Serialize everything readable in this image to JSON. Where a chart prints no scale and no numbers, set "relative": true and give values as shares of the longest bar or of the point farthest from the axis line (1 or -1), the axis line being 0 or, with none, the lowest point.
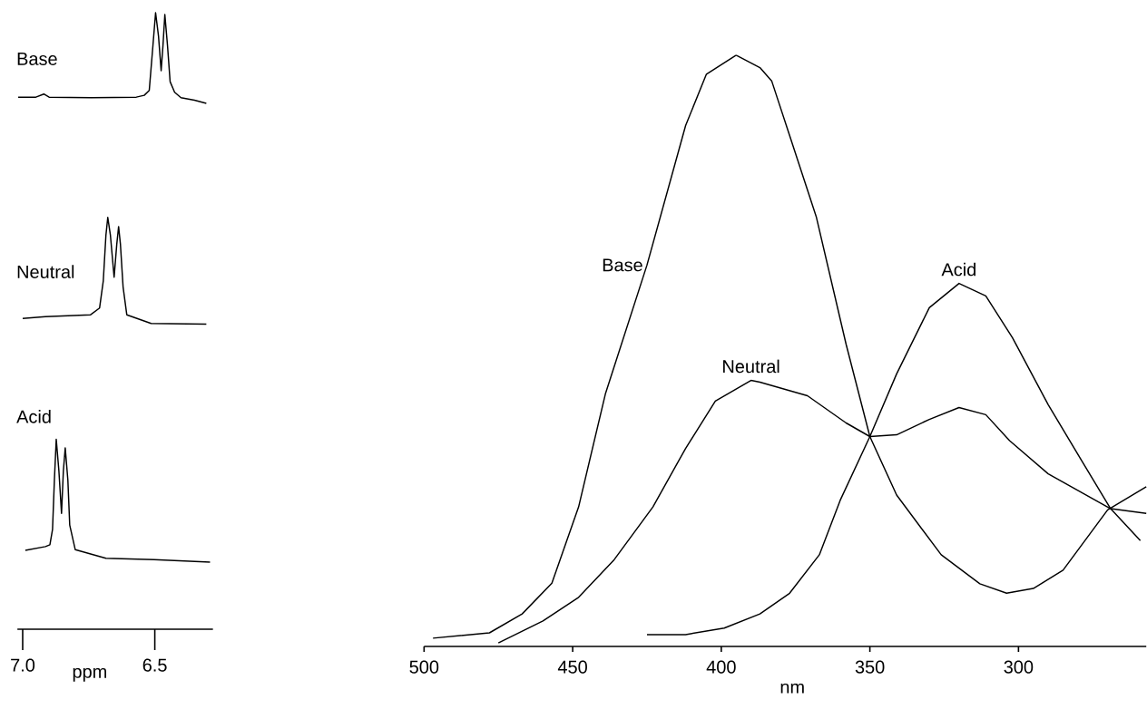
{
  "chart_data": [
    {
      "type": "line",
      "relative": true,
      "xlim": [
        7.02,
        6.28
      ],
      "xticks": [
        {
          "value": 7.0,
          "label": "7.0"
        },
        6.5
      ],
      "xlabel": "ppm",
      "tick_labels": "x",
      "series": [
        {
          "name": "Base",
          "color": "#000000",
          "x": [
            7.017,
            6.95,
            6.92,
            6.9,
            6.74,
            6.57,
            6.54,
            6.521,
            6.507,
            6.497,
            6.486,
            6.476,
            6.469,
            6.462,
            6.452,
            6.442,
            6.425,
            6.401,
            6.35,
            6.305
          ],
          "values": [
            0.863,
            0.863,
            0.868,
            0.863,
            0.862,
            0.863,
            0.866,
            0.874,
            0.947,
            1.0,
            0.962,
            0.906,
            0.947,
            0.997,
            0.947,
            0.888,
            0.871,
            0.862,
            0.858,
            0.853
          ]
        },
        {
          "name": "Neutral",
          "color": "#000000",
          "x": [
            7.0,
            6.914,
            6.743,
            6.709,
            6.695,
            6.685,
            6.678,
            6.668,
            6.654,
            6.644,
            6.637,
            6.63,
            6.62,
            6.606,
            6.514,
            6.305
          ],
          "values": [
            0.504,
            0.507,
            0.51,
            0.521,
            0.565,
            0.639,
            0.668,
            0.639,
            0.571,
            0.624,
            0.653,
            0.624,
            0.555,
            0.51,
            0.496,
            0.495
          ]
        },
        {
          "name": "Acid",
          "color": "#000000",
          "x": [
            6.99,
            6.914,
            6.897,
            6.887,
            6.88,
            6.873,
            6.863,
            6.853,
            6.846,
            6.839,
            6.829,
            6.822,
            6.801,
            6.743,
            6.685,
            6.503,
            6.291
          ],
          "values": [
            0.128,
            0.134,
            0.137,
            0.162,
            0.242,
            0.308,
            0.257,
            0.188,
            0.257,
            0.294,
            0.242,
            0.169,
            0.129,
            0.122,
            0.115,
            0.113,
            0.109
          ]
        }
      ]
    },
    {
      "type": "line",
      "relative": true,
      "xlim": [
        500,
        257
      ],
      "xticks": [
        500,
        450,
        400,
        350,
        300
      ],
      "xlabel": "nm",
      "tick_labels": "x",
      "series": [
        {
          "name": "Base",
          "color": "#000000",
          "x": [
            497,
            478,
            467,
            457,
            448,
            439,
            425,
            412,
            405,
            395,
            387,
            383,
            377,
            368,
            358,
            350,
            341,
            326,
            313,
            304,
            295,
            285,
            270,
            257
          ],
          "values": [
            0.014,
            0.023,
            0.055,
            0.107,
            0.236,
            0.427,
            0.645,
            0.881,
            0.968,
            1.0,
            0.979,
            0.956,
            0.864,
            0.726,
            0.511,
            0.355,
            0.256,
            0.155,
            0.106,
            0.09,
            0.098,
            0.129,
            0.231,
            0.27
          ]
        },
        {
          "name": "Neutral",
          "color": "#000000",
          "x": [
            475,
            460,
            448,
            436,
            423,
            412,
            402,
            390,
            387,
            371,
            358,
            350,
            341,
            330,
            320,
            311,
            303,
            290,
            269,
            257
          ],
          "values": [
            0.006,
            0.043,
            0.083,
            0.147,
            0.236,
            0.335,
            0.415,
            0.45,
            0.447,
            0.424,
            0.378,
            0.355,
            0.358,
            0.384,
            0.404,
            0.392,
            0.348,
            0.292,
            0.233,
            0.225
          ]
        },
        {
          "name": "Acid",
          "color": "#000000",
          "x": [
            425,
            412,
            399,
            387,
            377,
            367,
            360,
            350,
            341,
            330,
            320,
            311,
            302,
            290,
            278,
            269,
            259
          ],
          "values": [
            0.02,
            0.02,
            0.031,
            0.055,
            0.09,
            0.155,
            0.247,
            0.355,
            0.461,
            0.573,
            0.614,
            0.593,
            0.522,
            0.409,
            0.308,
            0.233,
            0.179
          ]
        }
      ]
    }
  ]
}
